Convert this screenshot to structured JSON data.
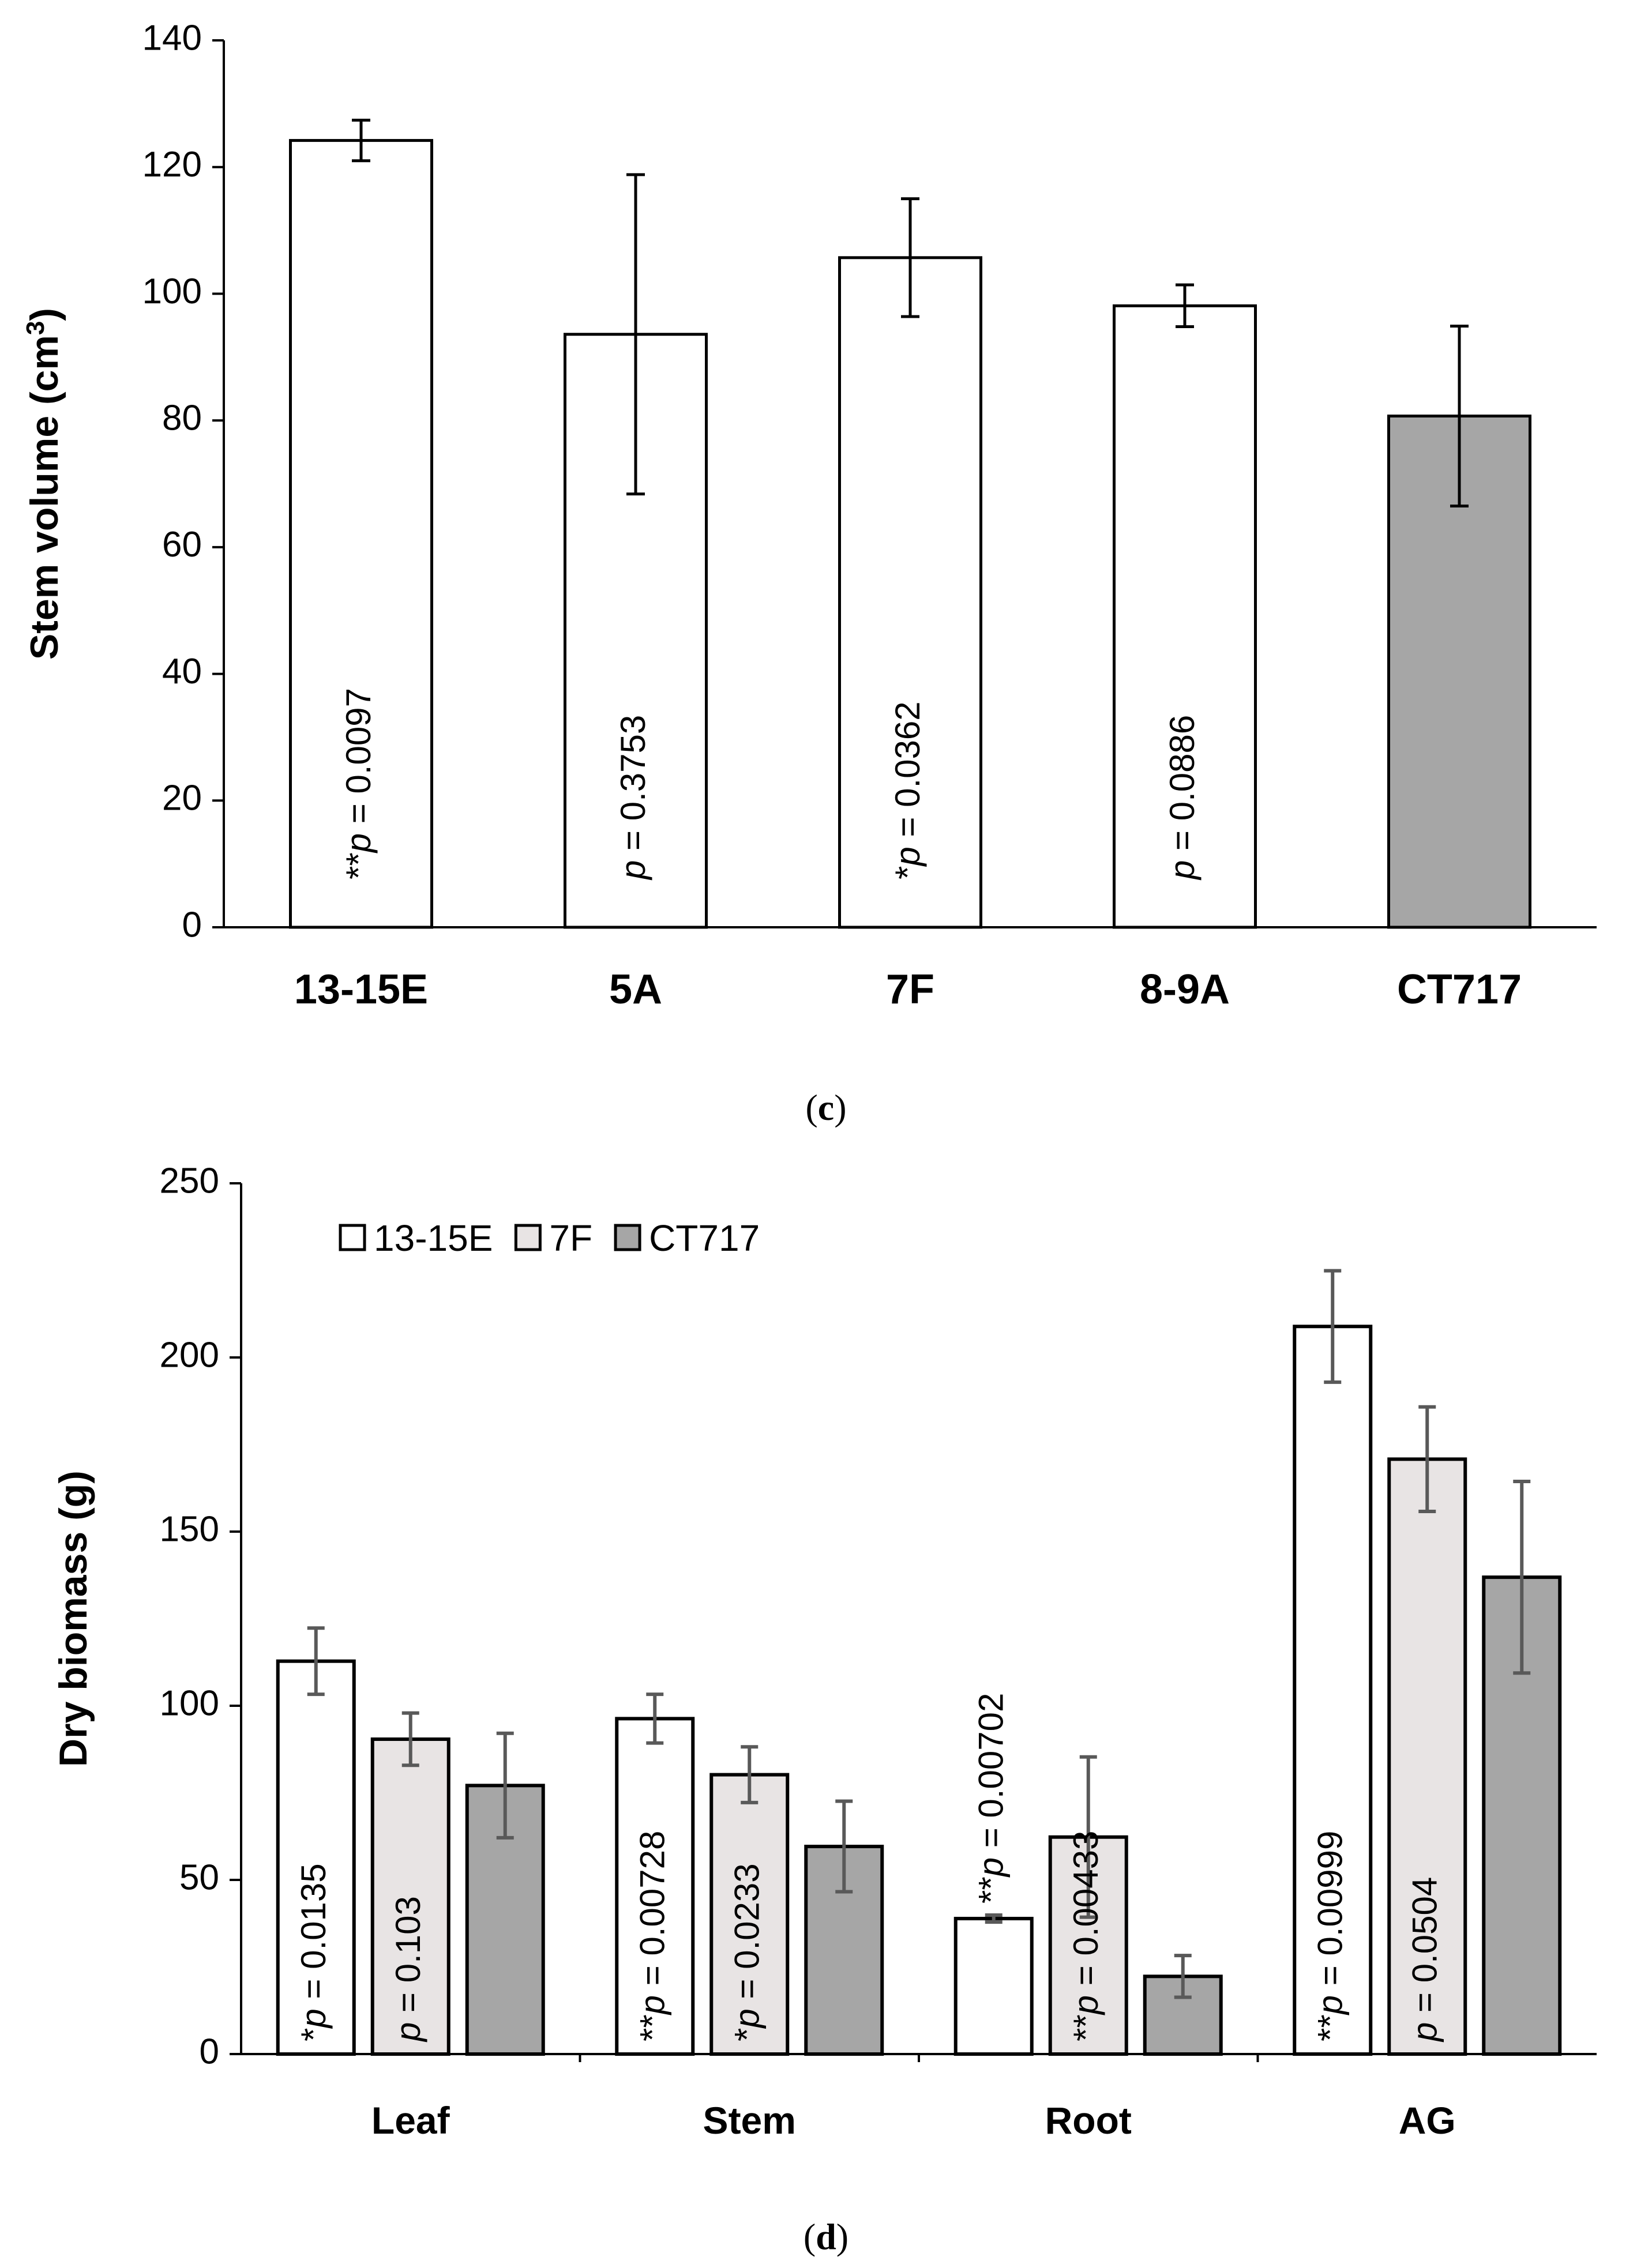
{
  "chart_data": [
    {
      "type": "bar",
      "panel": "(c)",
      "panel_letter": "c",
      "title": "",
      "xlabel": "",
      "ylabel": "Stem volume (cm",
      "ylabel_sup": "3",
      "ylabel_close": ")",
      "ylim": [
        0,
        140
      ],
      "yticks": [
        "0",
        "20",
        "40",
        "60",
        "80",
        "100",
        "120",
        "140"
      ],
      "grid": false,
      "categories": [
        "13-15E",
        "5A",
        "7F",
        "8-9A",
        "CT717"
      ],
      "values": [
        124.2,
        93.6,
        105.7,
        98.1,
        80.7
      ],
      "errors": [
        3.2,
        25.2,
        9.3,
        3.3,
        14.2
      ],
      "fills": [
        "#ffffff",
        "#ffffff",
        "#ffffff",
        "#ffffff",
        "#a6a6a6"
      ],
      "annotations": [
        {
          "stars": "**",
          "p": "p",
          "rest": " = 0.0097"
        },
        {
          "stars": "",
          "p": "p",
          "rest": " = 0.3753"
        },
        {
          "stars": "*",
          "p": "p",
          "rest": " = 0.0362"
        },
        {
          "stars": "",
          "p": "p",
          "rest": " = 0.0886"
        },
        null
      ]
    },
    {
      "type": "bar",
      "panel": "(d)",
      "panel_letter": "d",
      "title": "",
      "xlabel": "",
      "ylabel": "Dry biomass (g)",
      "ylim": [
        0,
        250
      ],
      "yticks": [
        "0",
        "50",
        "100",
        "150",
        "200",
        "250"
      ],
      "grid": false,
      "legend_position": "top-left",
      "categories": [
        "Leaf",
        "Stem",
        "Root",
        "AG"
      ],
      "series": [
        {
          "name": "13-15E",
          "color": "#ffffff",
          "values": [
            112.8,
            96.3,
            38.9,
            208.9
          ],
          "errors": [
            9.5,
            7.0,
            1.0,
            16.0
          ]
        },
        {
          "name": "7F",
          "color": "#e8e4e4",
          "values": [
            90.4,
            80.2,
            62.3,
            170.8
          ],
          "errors": [
            7.5,
            8.0,
            23.0,
            15.0
          ]
        },
        {
          "name": "CT717",
          "color": "#a6a6a6",
          "values": [
            77.1,
            59.6,
            22.3,
            136.9
          ],
          "errors": [
            15.0,
            13.0,
            6.0,
            27.5
          ]
        }
      ],
      "annotations": [
        [
          {
            "stars": "*",
            "p": "p",
            "rest": " = 0.0135"
          },
          {
            "stars": "**",
            "p": "p",
            "rest": " = 0.00728"
          },
          {
            "stars": "**",
            "p": "p",
            "rest": " = 0.00702"
          },
          {
            "stars": "**",
            "p": "p",
            "rest": " = 0.00999"
          }
        ],
        [
          {
            "stars": "",
            "p": "p",
            "rest": " = 0.103"
          },
          {
            "stars": "*",
            "p": "p",
            "rest": " = 0.0233"
          },
          {
            "stars": "**",
            "p": "p",
            "rest": " = 0.00433"
          },
          {
            "stars": "",
            "p": "p",
            "rest": " = 0.0504"
          }
        ],
        [
          null,
          null,
          null,
          null
        ]
      ]
    }
  ]
}
